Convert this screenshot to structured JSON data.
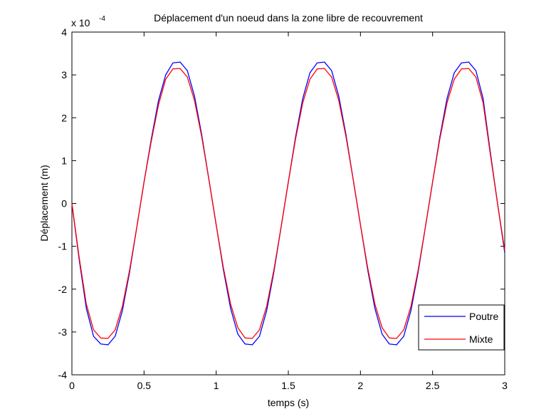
{
  "chart_data": {
    "type": "line",
    "title": "Déplacement d'un noeud dans la zone libre de recouvrement",
    "xlabel": "temps (s)",
    "ylabel": "Déplacement (m)",
    "y_scale_factor_label": "x 10",
    "y_scale_exponent": "-4",
    "xlim": [
      0,
      3
    ],
    "ylim": [
      -4,
      4
    ],
    "xticks": [
      "0",
      "0.5",
      "1",
      "1.5",
      "2",
      "2.5",
      "3"
    ],
    "yticks": [
      "-4",
      "-3",
      "-2",
      "-1",
      "0",
      "1",
      "2",
      "3",
      "4"
    ],
    "grid": false,
    "legend_position": "bottom-right",
    "x": [
      0,
      0.05,
      0.1,
      0.15,
      0.2,
      0.25,
      0.3,
      0.35,
      0.4,
      0.45,
      0.5,
      0.55,
      0.6,
      0.65,
      0.7,
      0.75,
      0.8,
      0.85,
      0.9,
      0.95,
      1.0,
      1.05,
      1.1,
      1.15,
      1.2,
      1.25,
      1.3,
      1.35,
      1.4,
      1.45,
      1.5,
      1.55,
      1.6,
      1.65,
      1.7,
      1.75,
      1.8,
      1.85,
      1.9,
      1.95,
      2.0,
      2.05,
      2.1,
      2.15,
      2.2,
      2.25,
      2.3,
      2.35,
      2.4,
      2.45,
      2.5,
      2.55,
      2.6,
      2.65,
      2.7,
      2.75,
      2.8,
      2.85,
      2.9,
      2.95,
      3.0
    ],
    "series": [
      {
        "name": "Poutre",
        "color": "#0000ff",
        "values": [
          0.0,
          -1.3,
          -2.45,
          -3.1,
          -3.28,
          -3.3,
          -3.1,
          -2.5,
          -1.6,
          -0.55,
          0.5,
          1.5,
          2.4,
          3.0,
          3.28,
          3.3,
          3.1,
          2.5,
          1.6,
          0.55,
          -0.5,
          -1.55,
          -2.45,
          -3.05,
          -3.28,
          -3.3,
          -3.1,
          -2.5,
          -1.6,
          -0.55,
          0.5,
          1.55,
          2.45,
          3.05,
          3.28,
          3.3,
          3.1,
          2.5,
          1.6,
          0.55,
          -0.5,
          -1.55,
          -2.45,
          -3.05,
          -3.28,
          -3.3,
          -3.1,
          -2.5,
          -1.6,
          -0.55,
          0.5,
          1.55,
          2.45,
          3.05,
          3.28,
          3.3,
          3.1,
          2.45,
          1.2,
          0.0,
          -1.15
        ]
      },
      {
        "name": "Mixte",
        "color": "#ff0000",
        "values": [
          0.0,
          -1.25,
          -2.35,
          -2.95,
          -3.14,
          -3.15,
          -2.95,
          -2.4,
          -1.55,
          -0.55,
          0.5,
          1.45,
          2.3,
          2.9,
          3.14,
          3.15,
          2.95,
          2.4,
          1.55,
          0.55,
          -0.5,
          -1.5,
          -2.35,
          -2.9,
          -3.14,
          -3.15,
          -2.95,
          -2.4,
          -1.55,
          -0.55,
          0.5,
          1.5,
          2.35,
          2.9,
          3.14,
          3.15,
          2.95,
          2.4,
          1.55,
          0.55,
          -0.5,
          -1.5,
          -2.35,
          -2.9,
          -3.14,
          -3.15,
          -2.95,
          -2.4,
          -1.55,
          -0.55,
          0.5,
          1.5,
          2.35,
          2.9,
          3.14,
          3.15,
          2.95,
          2.35,
          1.15,
          0.0,
          -1.1
        ]
      }
    ]
  }
}
